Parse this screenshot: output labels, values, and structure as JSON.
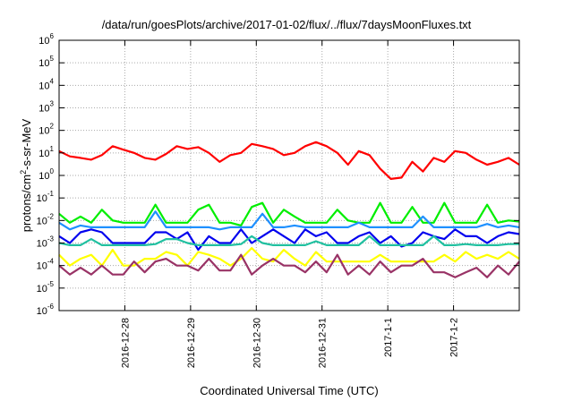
{
  "chart_data": {
    "type": "line",
    "title": "/data/run/goesPlots/archive/2017-01-02/flux/../flux/7daysMoonFluxes.txt",
    "xlabel": "Coordinated Universal Time (UTC)",
    "ylabel": "protons/cm2-s-sr-MeV",
    "ylabel_base": "protons/cm",
    "ylabel_sup": "2",
    "ylabel_rest": "-s-sr-MeV",
    "yscale": "log",
    "ylim_exp": [
      -6,
      6
    ],
    "ytick_exps": [
      "-6",
      "-5",
      "-4",
      "-3",
      "-2",
      "-1",
      "0",
      "1",
      "2",
      "3",
      "4",
      "5",
      "6"
    ],
    "xlim_days": [
      0,
      7
    ],
    "xticks": [
      {
        "day": 1,
        "label": "2016-12-28"
      },
      {
        "day": 2,
        "label": "2016-12-29"
      },
      {
        "day": 3,
        "label": "2016-12-30"
      },
      {
        "day": 4,
        "label": "2016-12-31"
      },
      {
        "day": 5,
        "label": "2017-1-1"
      },
      {
        "day": 6,
        "label": "2017-1-2"
      }
    ],
    "grid": true,
    "x_step_days": 0.16667,
    "series": [
      {
        "name": "red",
        "color": "#ff0000",
        "values": [
          12,
          7,
          6,
          5,
          8,
          20,
          14,
          10,
          6,
          5,
          9,
          20,
          15,
          18,
          10,
          4,
          8,
          10,
          25,
          20,
          15,
          8,
          10,
          20,
          30,
          20,
          10,
          3,
          12,
          8,
          2,
          0.7,
          0.8,
          4,
          1.5,
          6,
          4,
          12,
          10,
          5,
          3,
          4,
          6,
          3
        ]
      },
      {
        "name": "green",
        "color": "#00ee00",
        "values": [
          0.02,
          0.008,
          0.015,
          0.008,
          0.03,
          0.01,
          0.008,
          0.008,
          0.008,
          0.05,
          0.008,
          0.008,
          0.008,
          0.03,
          0.05,
          0.008,
          0.008,
          0.006,
          0.04,
          0.06,
          0.008,
          0.03,
          0.015,
          0.008,
          0.008,
          0.008,
          0.03,
          0.01,
          0.008,
          0.008,
          0.06,
          0.008,
          0.008,
          0.04,
          0.008,
          0.008,
          0.06,
          0.008,
          0.008,
          0.008,
          0.05,
          0.008,
          0.01,
          0.009
        ]
      },
      {
        "name": "light-blue",
        "color": "#1e90ff",
        "values": [
          0.008,
          0.004,
          0.006,
          0.005,
          0.005,
          0.005,
          0.005,
          0.005,
          0.005,
          0.025,
          0.005,
          0.005,
          0.005,
          0.005,
          0.005,
          0.004,
          0.005,
          0.005,
          0.005,
          0.02,
          0.005,
          0.005,
          0.006,
          0.005,
          0.005,
          0.005,
          0.005,
          0.005,
          0.008,
          0.005,
          0.005,
          0.005,
          0.005,
          0.005,
          0.015,
          0.005,
          0.005,
          0.005,
          0.005,
          0.005,
          0.007,
          0.005,
          0.006,
          0.005
        ]
      },
      {
        "name": "blue",
        "color": "#0000ee",
        "values": [
          0.002,
          0.001,
          0.003,
          0.004,
          0.003,
          0.001,
          0.001,
          0.001,
          0.001,
          0.003,
          0.003,
          0.0015,
          0.003,
          0.0005,
          0.002,
          0.001,
          0.001,
          0.004,
          0.001,
          0.002,
          0.004,
          0.002,
          0.001,
          0.004,
          0.002,
          0.003,
          0.001,
          0.001,
          0.002,
          0.003,
          0.001,
          0.002,
          0.0007,
          0.001,
          0.003,
          0.002,
          0.0015,
          0.004,
          0.002,
          0.002,
          0.001,
          0.002,
          0.003,
          0.0025
        ]
      },
      {
        "name": "teal",
        "color": "#20c0a0",
        "values": [
          0.001,
          0.0008,
          0.0008,
          0.0015,
          0.0008,
          0.0008,
          0.0008,
          0.0008,
          0.0008,
          0.0009,
          0.0015,
          0.0015,
          0.001,
          0.0008,
          0.0008,
          0.0008,
          0.0008,
          0.0009,
          0.002,
          0.001,
          0.0008,
          0.0008,
          0.0008,
          0.0008,
          0.0012,
          0.0008,
          0.0008,
          0.0008,
          0.0008,
          0.002,
          0.0008,
          0.0008,
          0.0008,
          0.0008,
          0.0008,
          0.002,
          0.0008,
          0.0008,
          0.0009,
          0.0008,
          0.0008,
          0.0008,
          0.0009,
          0.0009
        ]
      },
      {
        "name": "yellow",
        "color": "#ffff00",
        "values": [
          0.0003,
          0.0001,
          0.0002,
          0.0003,
          0.0001,
          0.0005,
          0.0001,
          0.0001,
          0.0002,
          0.0002,
          0.0004,
          0.0003,
          0.0001,
          0.0004,
          0.0003,
          0.0002,
          0.0001,
          0.0002,
          0.0006,
          0.0002,
          0.00015,
          0.0005,
          0.0002,
          0.0001,
          0.0004,
          0.00015,
          0.00015,
          0.00015,
          0.00015,
          0.00015,
          0.0003,
          0.00015,
          0.00015,
          0.00015,
          0.00015,
          0.00015,
          0.0003,
          0.00015,
          0.0004,
          0.0002,
          0.0003,
          0.0002,
          0.0004,
          0.0002
        ]
      },
      {
        "name": "purple",
        "color": "#993366",
        "values": [
          0.0001,
          4e-05,
          8e-05,
          4e-05,
          0.0001,
          4e-05,
          4e-05,
          0.00015,
          5e-05,
          0.00015,
          0.0002,
          0.0001,
          0.0001,
          6e-05,
          0.0002,
          6e-05,
          6e-05,
          0.0003,
          4e-05,
          0.0001,
          0.0002,
          0.0001,
          0.0001,
          5e-05,
          0.00015,
          5e-05,
          0.0003,
          4e-05,
          0.0001,
          4e-05,
          0.00015,
          5e-05,
          0.0001,
          0.0001,
          0.0002,
          5e-05,
          5e-05,
          3e-05,
          5e-05,
          8e-05,
          3e-05,
          0.0001,
          4e-05,
          0.00015
        ]
      }
    ]
  }
}
